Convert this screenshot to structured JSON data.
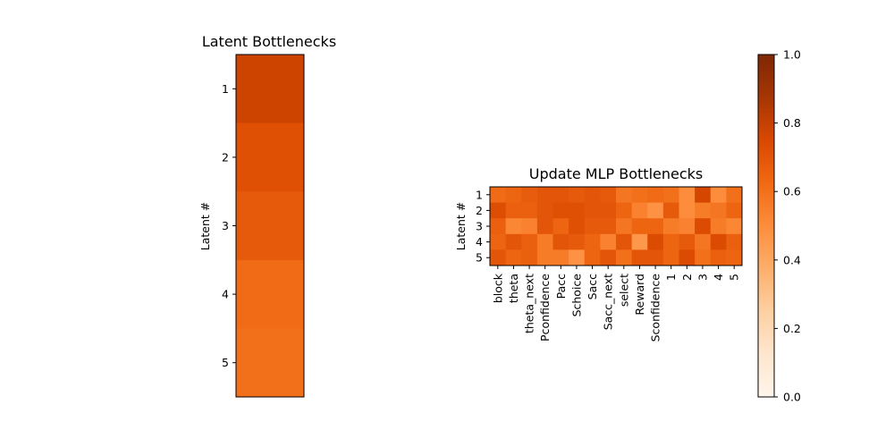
{
  "chart_data": [
    {
      "type": "heatmap",
      "title": "Latent Bottlenecks",
      "ylabel": "Latent #",
      "xlabel": "",
      "y_categories": [
        "1",
        "2",
        "3",
        "4",
        "5"
      ],
      "x_categories": [],
      "values": [
        [
          0.78
        ],
        [
          0.72
        ],
        [
          0.68
        ],
        [
          0.62
        ],
        [
          0.6
        ]
      ],
      "colormap": "Oranges",
      "vmin": 0,
      "vmax": 1
    },
    {
      "type": "heatmap",
      "title": "Update MLP Bottlenecks",
      "ylabel": "Latent #",
      "xlabel": "",
      "y_categories": [
        "1",
        "2",
        "3",
        "4",
        "5"
      ],
      "x_categories": [
        "block",
        "theta",
        "theta_next",
        "Pconfidence",
        "Pacc",
        "Schoice",
        "Sacc",
        "Sacc_next",
        "select",
        "Reward",
        "Sconfidence",
        "1",
        "2",
        "3",
        "4",
        "5"
      ],
      "values": [
        [
          0.62,
          0.64,
          0.67,
          0.7,
          0.7,
          0.68,
          0.7,
          0.68,
          0.58,
          0.6,
          0.62,
          0.6,
          0.5,
          0.76,
          0.5,
          0.6
        ],
        [
          0.73,
          0.66,
          0.66,
          0.7,
          0.72,
          0.72,
          0.7,
          0.7,
          0.64,
          0.54,
          0.48,
          0.68,
          0.5,
          0.56,
          0.58,
          0.64
        ],
        [
          0.66,
          0.52,
          0.54,
          0.7,
          0.64,
          0.72,
          0.68,
          0.68,
          0.58,
          0.64,
          0.64,
          0.56,
          0.54,
          0.74,
          0.56,
          0.52
        ],
        [
          0.64,
          0.7,
          0.66,
          0.56,
          0.7,
          0.68,
          0.64,
          0.54,
          0.7,
          0.46,
          0.74,
          0.64,
          0.68,
          0.58,
          0.74,
          0.66
        ],
        [
          0.7,
          0.64,
          0.66,
          0.56,
          0.56,
          0.48,
          0.64,
          0.7,
          0.6,
          0.7,
          0.7,
          0.64,
          0.74,
          0.6,
          0.66,
          0.64
        ]
      ],
      "colormap": "Oranges",
      "vmin": 0,
      "vmax": 1
    }
  ],
  "colorbar": {
    "ticks": [
      "0.0",
      "0.2",
      "0.4",
      "0.6",
      "0.8",
      "1.0"
    ],
    "tick_values": [
      0,
      0.2,
      0.4,
      0.6,
      0.8,
      1.0
    ]
  }
}
